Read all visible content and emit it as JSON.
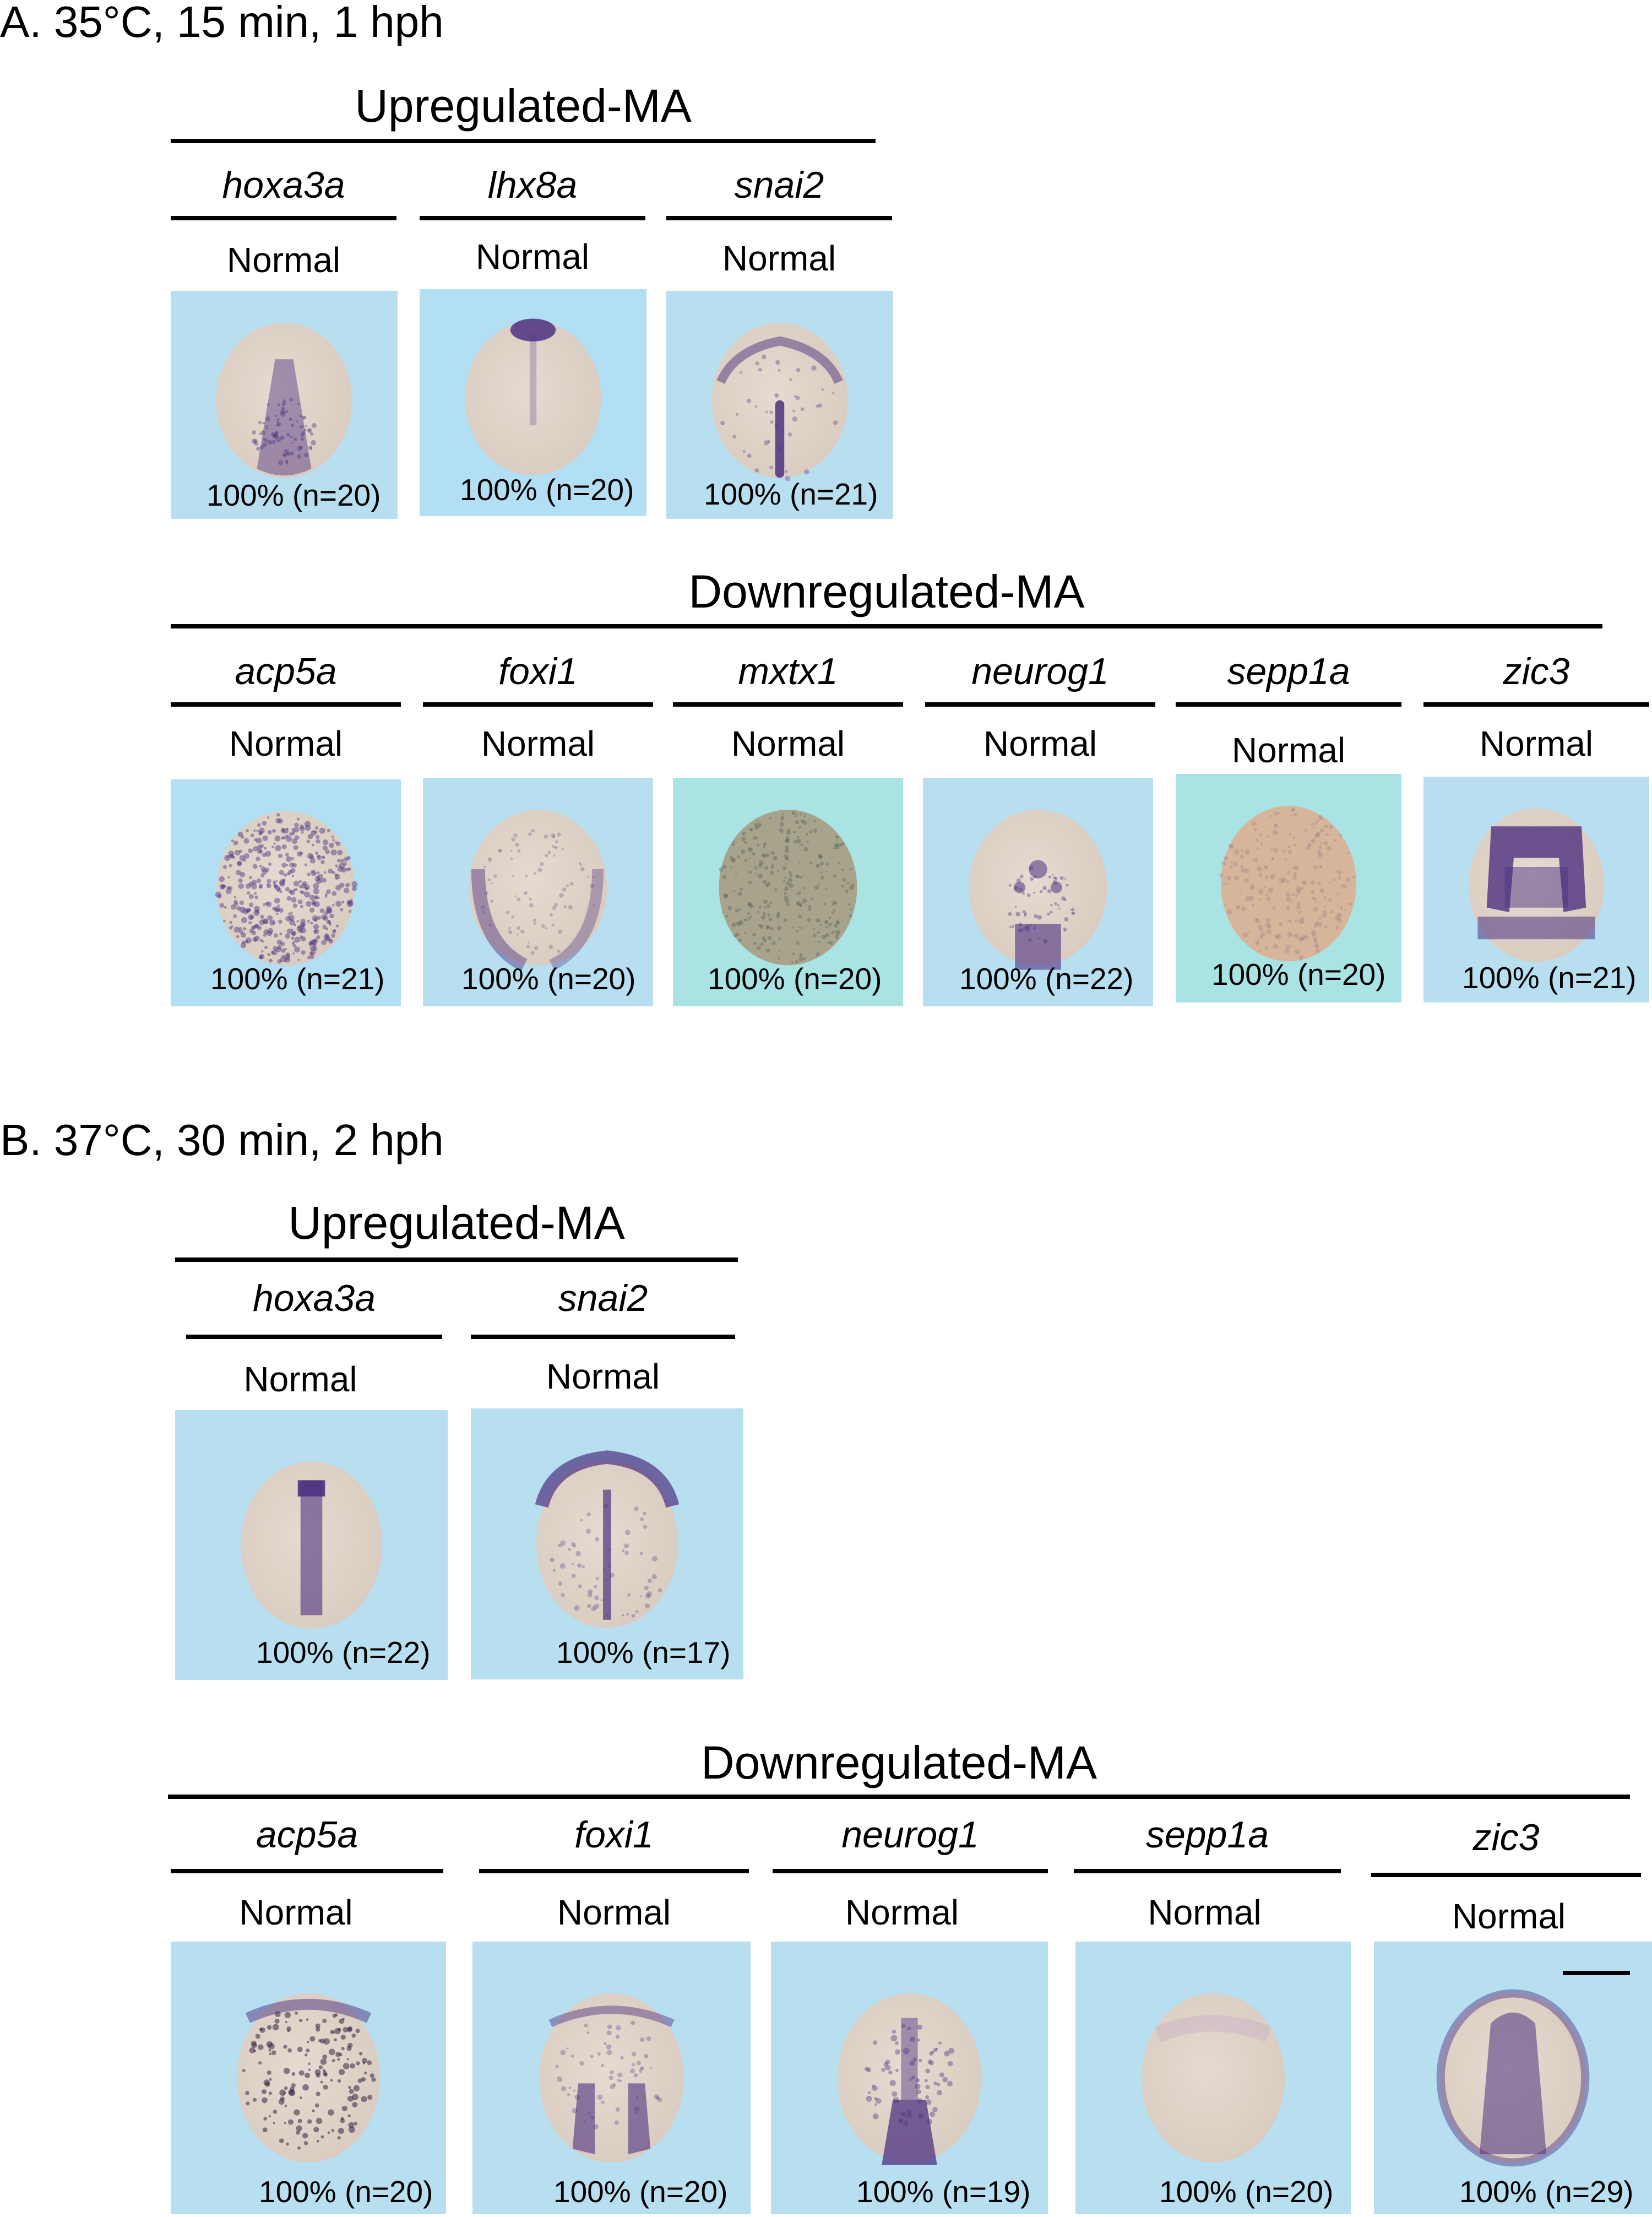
{
  "section_a": {
    "title": "A. 35°C, 15 min, 1 hph",
    "upregulated": {
      "title": "Upregulated-MA",
      "panels": [
        {
          "gene": "hoxa3a",
          "phenotype": "Normal",
          "count": "100% (n=20)",
          "stain": "hoxa3a-a"
        },
        {
          "gene": "lhx8a",
          "phenotype": "Normal",
          "count": "100% (n=20)",
          "stain": "lhx8a"
        },
        {
          "gene": "snai2",
          "phenotype": "Normal",
          "count": "100% (n=21)",
          "stain": "snai2-a"
        }
      ]
    },
    "downregulated": {
      "title": "Downregulated-MA",
      "panels": [
        {
          "gene": "acp5a",
          "phenotype": "Normal",
          "count": "100% (n=21)",
          "stain": "acp5a-a"
        },
        {
          "gene": "foxi1",
          "phenotype": "Normal",
          "count": "100% (n=20)",
          "stain": "foxi1-a"
        },
        {
          "gene": "mxtx1",
          "phenotype": "Normal",
          "count": "100% (n=20)",
          "stain": "mxtx1"
        },
        {
          "gene": "neurog1",
          "phenotype": "Normal",
          "count": "100% (n=22)",
          "stain": "neurog1-a"
        },
        {
          "gene": "sepp1a",
          "phenotype": "Normal",
          "count": "100% (n=20)",
          "stain": "sepp1a-a"
        },
        {
          "gene": "zic3",
          "phenotype": "Normal",
          "count": "100% (n=21)",
          "stain": "zic3-a"
        }
      ]
    }
  },
  "section_b": {
    "title": "B. 37°C, 30 min, 2 hph",
    "upregulated": {
      "title": "Upregulated-MA",
      "panels": [
        {
          "gene": "hoxa3a",
          "phenotype": "Normal",
          "count": "100% (n=22)",
          "stain": "hoxa3a-b"
        },
        {
          "gene": "snai2",
          "phenotype": "Normal",
          "count": "100% (n=17)",
          "stain": "snai2-b"
        }
      ]
    },
    "downregulated": {
      "title": "Downregulated-MA",
      "panels": [
        {
          "gene": "acp5a",
          "phenotype": "Normal",
          "count": "100% (n=20)",
          "stain": "acp5a-b"
        },
        {
          "gene": "foxi1",
          "phenotype": "Normal",
          "count": "100% (n=20)",
          "stain": "foxi1-b"
        },
        {
          "gene": "neurog1",
          "phenotype": "Normal",
          "count": "100% (n=19)",
          "stain": "neurog1-b"
        },
        {
          "gene": "sepp1a",
          "phenotype": "Normal",
          "count": "100% (n=20)",
          "stain": "sepp1a-b"
        },
        {
          "gene": "zic3",
          "phenotype": "Normal",
          "count": "100% (n=29)",
          "stain": "zic3-b"
        }
      ]
    }
  },
  "colors": {
    "panel_background": "#b7dff0",
    "embryo": "#d9cbbf",
    "stain": "#4d3180"
  }
}
